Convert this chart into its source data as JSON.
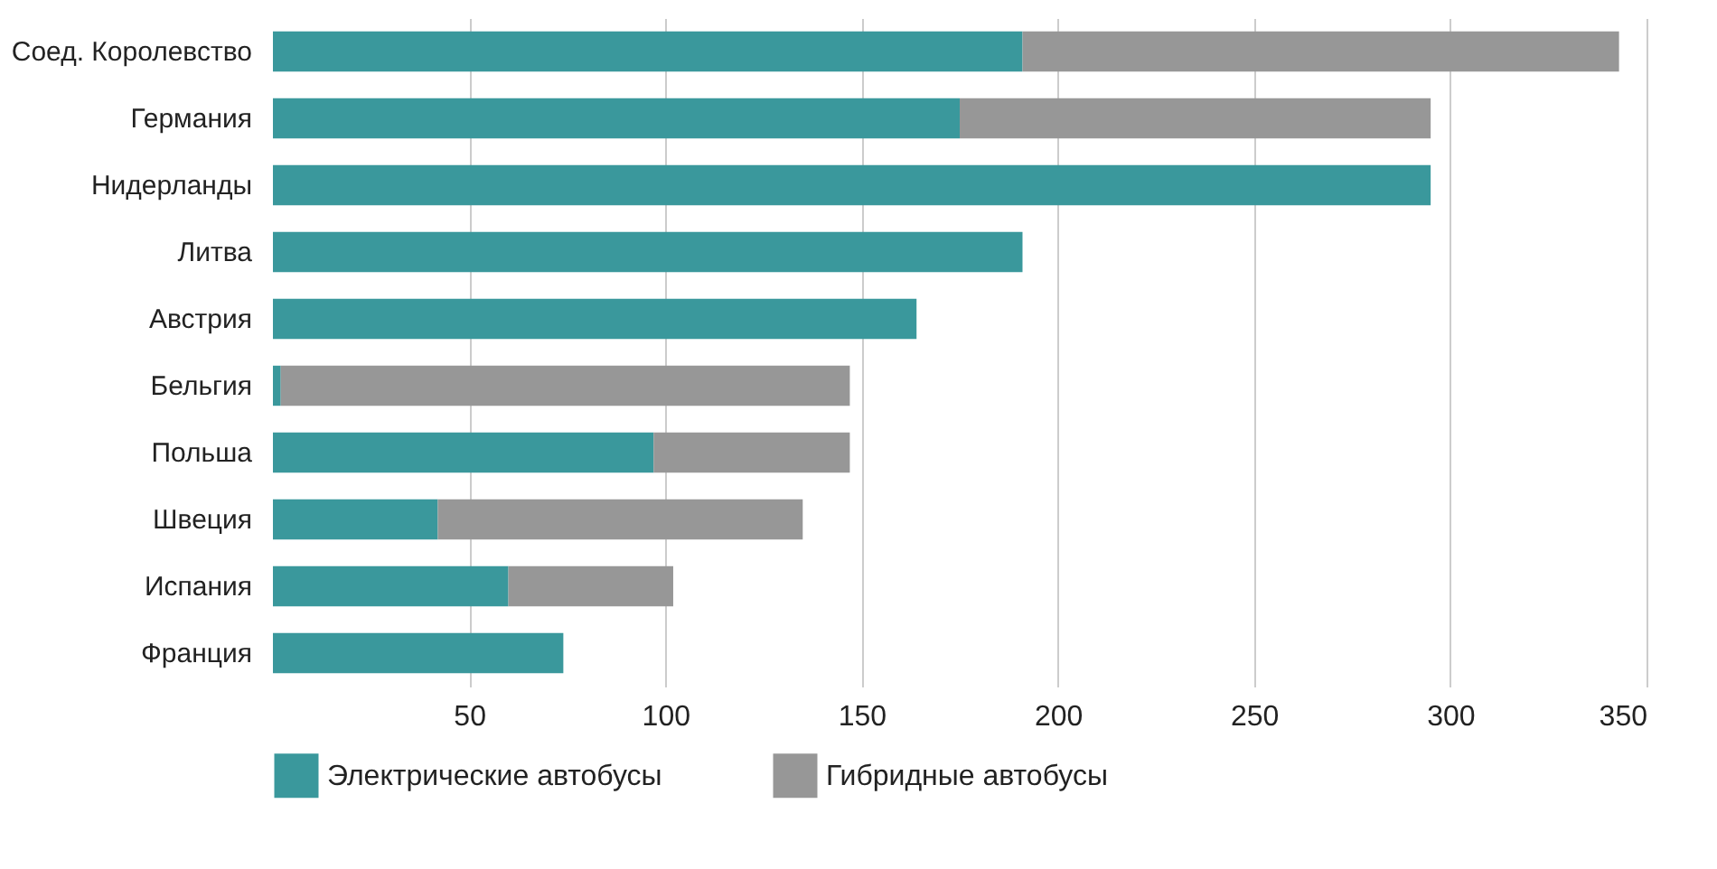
{
  "chart_data": {
    "type": "bar",
    "orientation": "horizontal",
    "stacked": true,
    "categories": [
      "Соед. Королевство",
      "Германия",
      "Нидерланды",
      "Литва",
      "Австрия",
      "Бельгия",
      "Польша",
      "Швеция",
      "Испания",
      "Франция"
    ],
    "series": [
      {
        "name": "Электрические автобусы",
        "color": "#3a989c",
        "values": [
          191,
          175,
          295,
          191,
          164,
          2,
          97,
          42,
          60,
          74
        ]
      },
      {
        "name": "Гибридные автобусы",
        "color": "#979797",
        "values": [
          152,
          120,
          null,
          null,
          null,
          145,
          50,
          93,
          42,
          null
        ]
      }
    ],
    "xlim": [
      0,
      350
    ],
    "xticks": [
      50,
      100,
      150,
      200,
      250,
      300,
      350
    ],
    "grid": "x",
    "legend": "bottom"
  }
}
